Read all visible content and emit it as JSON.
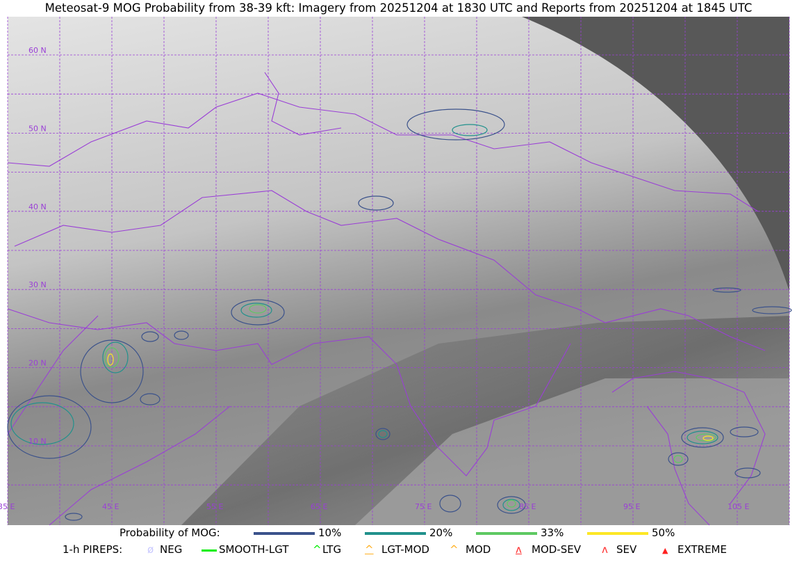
{
  "title": "Meteosat-9 MOG Probability from 38-39 kft: Imagery from 20251204 at 1830 UTC and Reports from 20251204 at 1845 UTC",
  "map": {
    "latitude_labels": [
      "60 N",
      "50 N",
      "40 N",
      "30 N",
      "20 N",
      "10 N"
    ],
    "longitude_labels": [
      "35 E",
      "45 E",
      "55 E",
      "65 E",
      "75 E",
      "85 E",
      "95 E",
      "105 E"
    ],
    "colors": {
      "grid": "#9a3fd6",
      "borders": "#9a3fd6",
      "off_disk": "#585858"
    }
  },
  "probability_legend": {
    "label": "Probability of MOG:",
    "items": [
      {
        "label": "10%",
        "color": "#3b528b"
      },
      {
        "label": "20%",
        "color": "#21918c"
      },
      {
        "label": "33%",
        "color": "#5ec962"
      },
      {
        "label": "50%",
        "color": "#fde725"
      }
    ]
  },
  "pirep_legend": {
    "label": "1-h PIREPS:",
    "items": [
      {
        "label": "NEG",
        "icon": "null-circle-icon",
        "color": "#c8c8ff"
      },
      {
        "label": "SMOOTH-LGT",
        "icon": "dash-icon",
        "color": "#00ee00"
      },
      {
        "label": "LTG",
        "icon": "caret-icon",
        "color": "#00ee00"
      },
      {
        "label": "LGT-MOD",
        "icon": "caret-bar-icon",
        "color": "#ffb020"
      },
      {
        "label": "MOD",
        "icon": "caret-icon",
        "color": "#ffb020"
      },
      {
        "label": "MOD-SEV",
        "icon": "double-caret-bar-icon",
        "color": "#ff3030"
      },
      {
        "label": "SEV",
        "icon": "double-caret-icon",
        "color": "#ff3030"
      },
      {
        "label": "EXTREME",
        "icon": "filled-triangle-icon",
        "color": "#ff2020"
      }
    ]
  }
}
